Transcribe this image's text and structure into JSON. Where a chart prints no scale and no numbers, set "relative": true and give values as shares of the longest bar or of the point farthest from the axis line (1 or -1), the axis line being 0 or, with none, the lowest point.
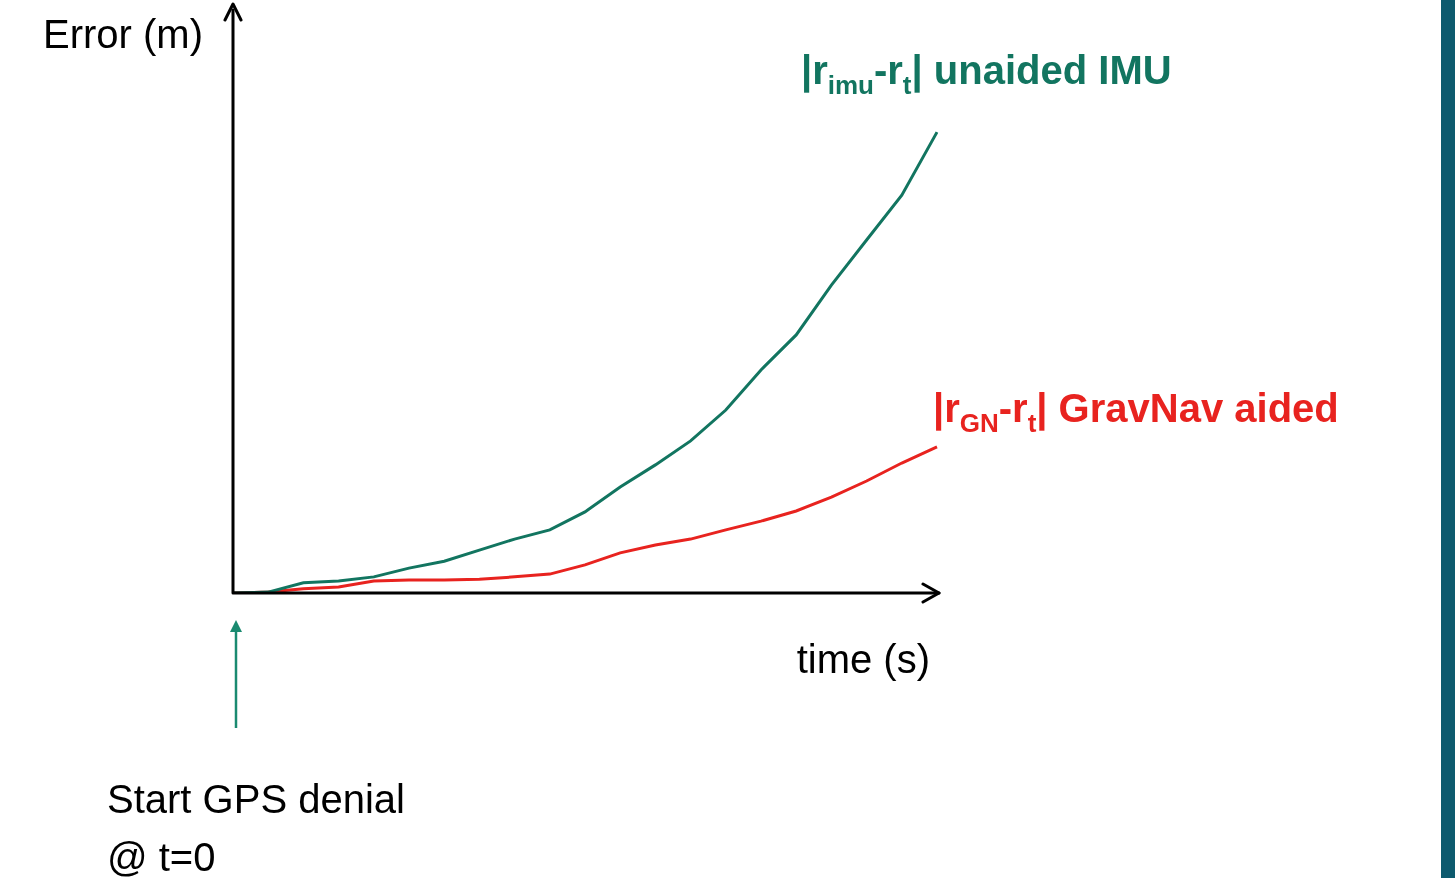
{
  "chart_data": {
    "type": "line",
    "relative": true,
    "legend": false,
    "xlabel": "time (s)",
    "ylabel": "Error (m)",
    "categories": [
      null,
      null,
      null,
      null,
      null,
      null,
      null,
      null,
      null,
      null,
      null,
      null,
      null,
      null,
      null,
      null,
      null,
      null,
      null,
      null,
      null
    ],
    "series": [
      {
        "name": "|r$_{imu}$-r$_{t}$| unaided IMU",
        "color": "#127560",
        "values": [
          0,
          0.002,
          0.022,
          0.026,
          0.035,
          0.054,
          0.069,
          0.093,
          0.117,
          0.137,
          0.176,
          0.23,
          0.278,
          0.33,
          0.397,
          0.484,
          0.56,
          0.668,
          0.766,
          0.863,
          1
        ]
      },
      {
        "name": "|r$_{GN}$-r$_{t}$| GravNav aided",
        "color": "#e8231f",
        "values": [
          0,
          0.002,
          0.009,
          0.013,
          0.026,
          0.028,
          0.028,
          0.03,
          0.035,
          0.041,
          0.061,
          0.087,
          0.104,
          0.117,
          0.137,
          0.156,
          0.178,
          0.208,
          0.243,
          0.282,
          0.317
        ]
      }
    ],
    "annotations": [
      "Start GPS denial\n@ t=0"
    ]
  }
}
